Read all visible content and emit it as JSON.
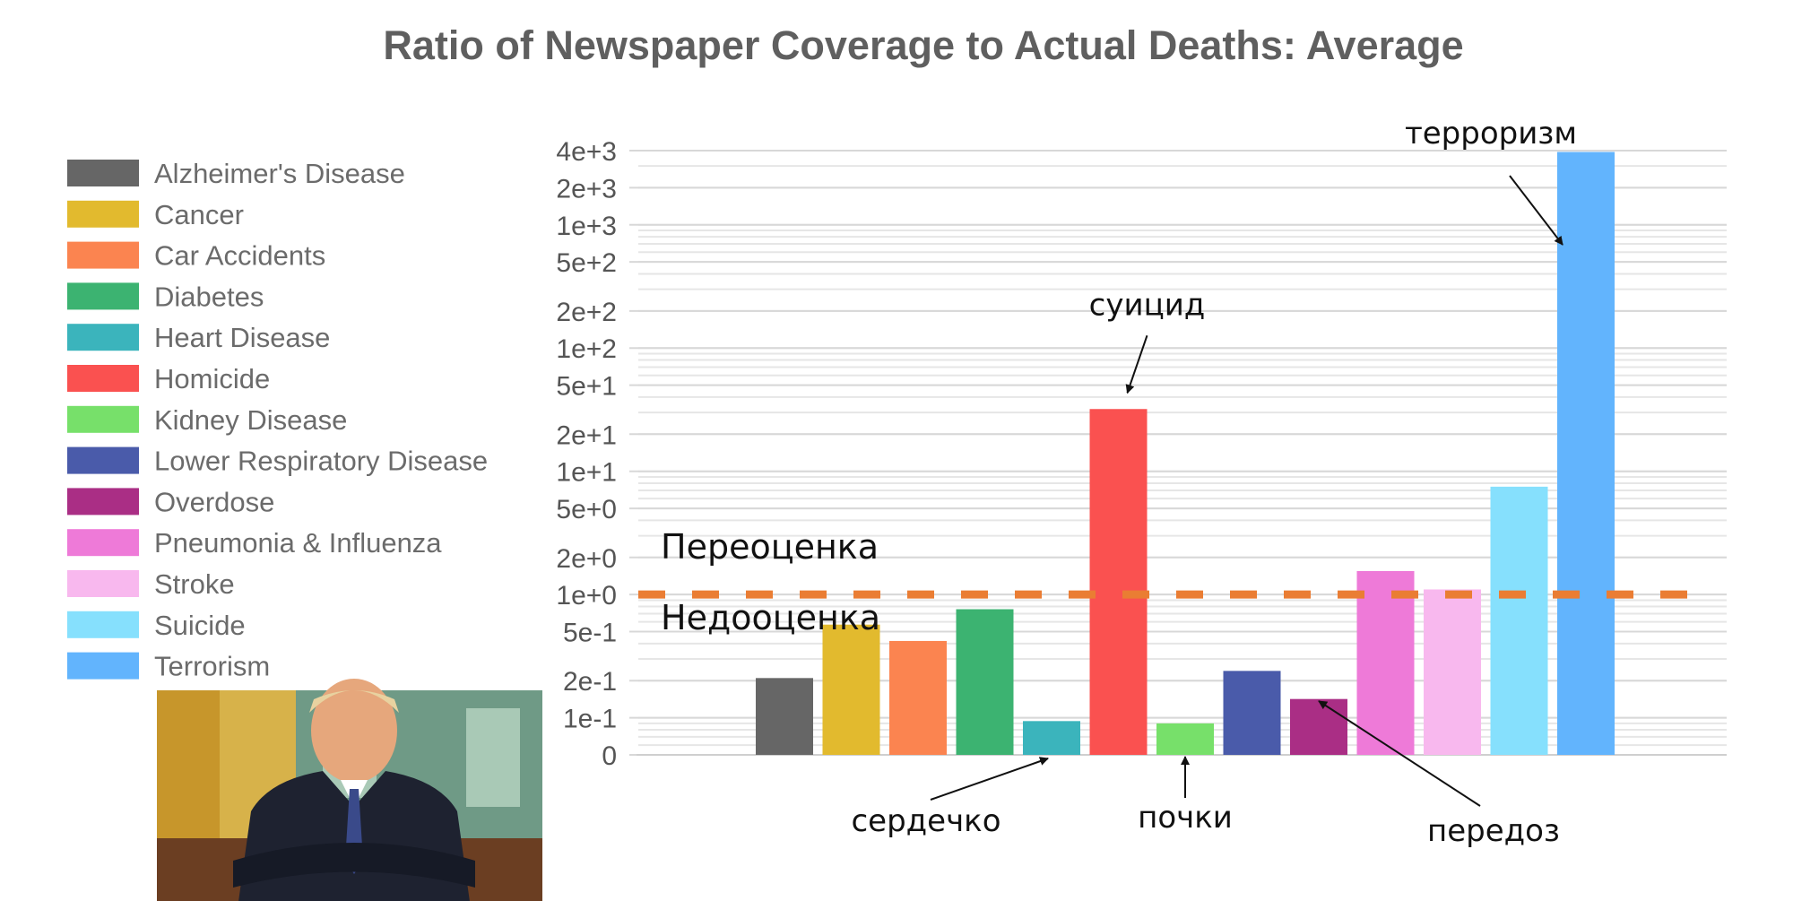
{
  "chart_data": {
    "type": "bar",
    "title": "Ratio of Newspaper Coverage to Actual Deaths: Average",
    "y_scale": "log",
    "grid": true,
    "legend_position": "left",
    "y_tick_labels": [
      "0",
      "1e-1",
      "2e-1",
      "5e-1",
      "1e+0",
      "2e+0",
      "5e+0",
      "1e+1",
      "2e+1",
      "5e+1",
      "1e+2",
      "2e+2",
      "5e+2",
      "1e+3",
      "2e+3",
      "4e+3"
    ],
    "y_tick_values": [
      0.05,
      0.1,
      0.2,
      0.5,
      1,
      2,
      5,
      10,
      20,
      50,
      100,
      200,
      500,
      1000,
      2000,
      4000
    ],
    "categories": [
      "Alzheimer's Disease",
      "Cancer",
      "Car Accidents",
      "Diabetes",
      "Heart Disease",
      "Homicide",
      "Kidney Disease",
      "Lower Respiratory Disease",
      "Overdose",
      "Pneumonia & Influenza",
      "Stroke",
      "Suicide",
      "Terrorism"
    ],
    "values": [
      0.21,
      0.57,
      0.42,
      0.76,
      0.094,
      32,
      0.09,
      0.24,
      0.142,
      1.55,
      1.1,
      7.5,
      3900
    ],
    "colors": [
      "#666666",
      "#e2ba2e",
      "#fb8450",
      "#3cb371",
      "#3bb4bc",
      "#fa5150",
      "#77e06a",
      "#4a5baa",
      "#aa2e85",
      "#ee7ad8",
      "#f8b8ee",
      "#86e0fd",
      "#62b4fd"
    ],
    "reference_line": {
      "value": 1,
      "color": "#ea7d33",
      "label_above": "Переоценка",
      "label_below": "Недооценка"
    },
    "annotations": [
      {
        "text": "терроризм",
        "target_category": "Terrorism"
      },
      {
        "text": "суицид",
        "target_category": "Homicide"
      },
      {
        "text": "сердечко",
        "target_category": "Heart Disease"
      },
      {
        "text": "почки",
        "target_category": "Kidney Disease"
      },
      {
        "text": "передоз",
        "target_category": "Overdose"
      }
    ]
  },
  "photo": {
    "description_icon": "person-photo"
  }
}
